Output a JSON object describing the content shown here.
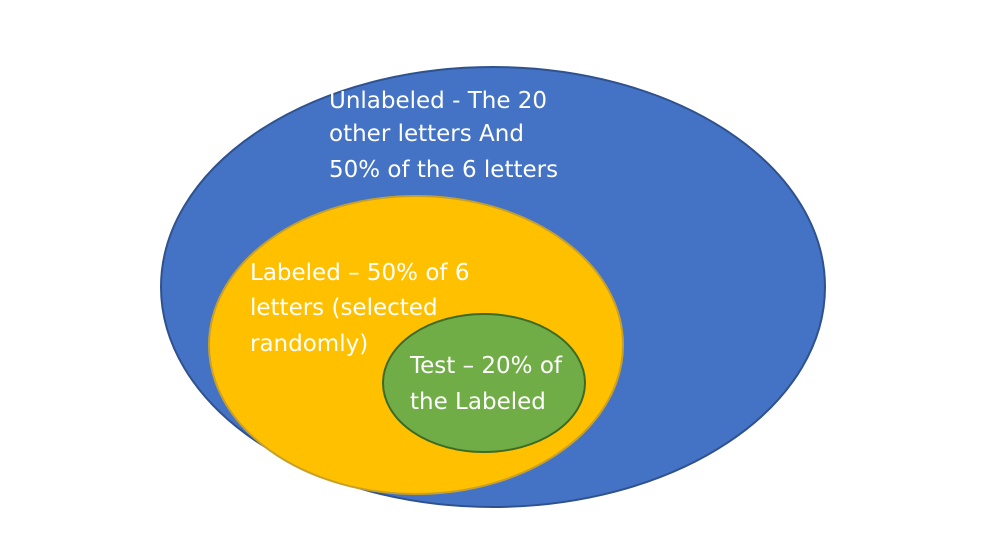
{
  "diagram": {
    "type": "nested-euler",
    "colors": {
      "outer": "#4472c4",
      "outer_stroke": "#2f528f",
      "middle": "#ffc000",
      "middle_stroke": "#c7a02b",
      "inner": "#70ad47",
      "inner_stroke": "#3c6b25",
      "text": "#ffffff"
    },
    "outer": {
      "lines": [
        "Unlabeled - The 20",
        "other letters And",
        "50% of the 6 letters"
      ]
    },
    "middle": {
      "lines": [
        "Labeled – 50% of 6",
        "letters (selected",
        "randomly)"
      ]
    },
    "inner": {
      "lines": [
        "Test – 20% of",
        "the Labeled"
      ]
    }
  }
}
